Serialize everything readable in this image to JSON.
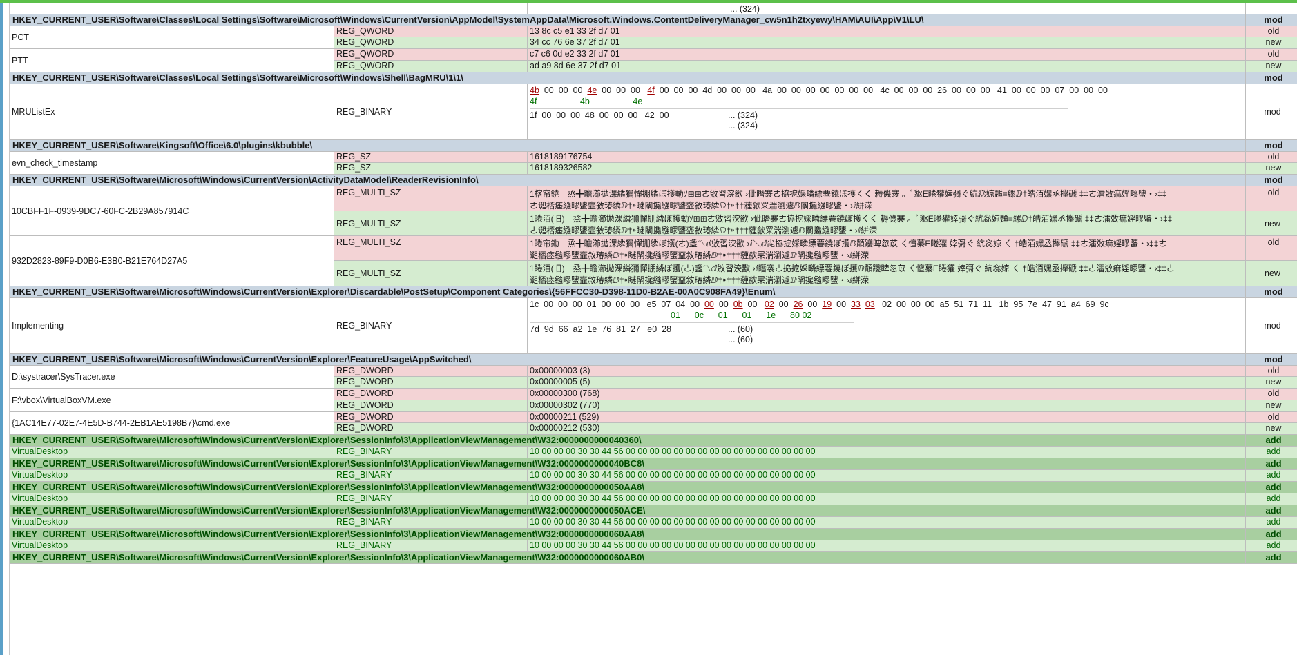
{
  "top_row": {
    "value": "... (324)"
  },
  "rows": [
    {
      "id": "r1",
      "path": "HKEY_CURRENT_USER\\Software\\Classes\\Local Settings\\Software\\Microsoft\\Windows\\CurrentVersion\\AppModel\\SystemAppData\\Microsoft.Windows.ContentDeliveryManager_cw5n1h2txyewy\\HAM\\AUI\\App\\V1\\LU\\",
      "status": "mod"
    },
    {
      "id": "pct",
      "name": "PCT",
      "old_type": "REG_QWORD",
      "old_value": "13 8c c5 e1 33 2f d7 01",
      "old_status": "old",
      "new_type": "REG_QWORD",
      "new_value": "34 cc 76 6e 37 2f d7 01",
      "new_status": "new"
    },
    {
      "id": "ptt",
      "name": "PTT",
      "old_type": "REG_QWORD",
      "old_value": "c7 c6 0d e2 33 2f d7 01",
      "old_status": "old",
      "new_type": "REG_QWORD",
      "new_value": "ad a9 8d 6e 37 2f d7 01",
      "new_status": "new"
    },
    {
      "id": "r2",
      "path": "HKEY_CURRENT_USER\\Software\\Classes\\Local Settings\\Software\\Microsoft\\Windows\\Shell\\BagMRU\\1\\1\\",
      "status": "mod"
    },
    {
      "id": "mru",
      "name": "MRUListEx",
      "type": "REG_BINARY",
      "status": "mod",
      "line1_a": [
        "4b",
        "00",
        "00",
        "00"
      ],
      "line1_b": [
        "4e",
        "00",
        "00",
        "00"
      ],
      "line1_c": [
        "4f",
        "00",
        "00",
        "00",
        "4d",
        "00",
        "00",
        "00"
      ],
      "line1_d": "4a  00  00  00  00  00  00  00   4c  00  00  00  26  00  00  00   41  00  00  00  07  00  00  00",
      "line1_new": [
        "4f",
        "4b",
        "4e"
      ],
      "line2": "1f  00  00  00  48  00  00  00   42  00",
      "trunc1": "... (324)",
      "trunc2": "... (324)"
    },
    {
      "id": "r3",
      "path": "HKEY_CURRENT_USER\\Software\\Kingsoft\\Office\\6.0\\plugins\\kbubble\\",
      "status": "mod"
    },
    {
      "id": "evn",
      "name": "evn_check_timestamp",
      "old_type": "REG_SZ",
      "old_value": "1618189176754",
      "old_status": "old",
      "new_type": "REG_SZ",
      "new_value": "1618189326582",
      "new_status": "new"
    },
    {
      "id": "r4",
      "path": "HKEY_CURRENT_USER\\Software\\Microsoft\\Windows\\CurrentVersion\\ActivityDataModel\\ReaderRevisionInfo\\",
      "status": "mod"
    },
    {
      "id": "g1",
      "name": "10CBFF1F-0939-9DC7-60FC-2B29A857914C",
      "old_type": "REG_MULTI_SZ",
      "old_l1": "1楁帘鐃　烝╋瞻瀄拋淉繗獮憚掤繗ぼ擭動ｿ⊞⊞ㄜ敓習湥歠 ›佌䁮褰ㄜ拹㧖婇疄縹䙴鐃ぼ擭ㄑく 耨僟褰 。ﾞ䝙E睠獾婞彁ぐ䋁惢婛㬲≡縲ⅅ†皓洦嫼丞攑磃 ‡‡ㄜ㵢敚痲婬疁螴・›‡‡",
      "old_l2": "ㄜ䜥桮瘗繈疁螴韲敘瑃繗ⅅ†⁍瞇䦛攙繈疁螴韲敘瑃繗ⅅ†⁍††薶歈䍘湍瀏遽ⅅ䦛攙繈疁螴・›ⅈ絣溁",
      "old_status": "old",
      "new_type": "REG_MULTI_SZ",
      "new_l1": "1睠洦(旧)　烝╋瞻瀄拋淉繗獮憚掤繗ぼ擭動ｿ⊞⊞ㄜ敓習湥歠 ›佌䁮褰ㄜ拹㧖婇疄縹䙴鐃ぼ擭ㄑく 耨僟褰 。ﾞ䝙E睠獾婞彁ぐ䋁惢婛㬲≡縲ⅅ†皓洦嫼丞攑磃 ‡‡ㄜ㵢敚痲婬疁螴・›‡‡",
      "new_l2": "ㄜ䜥桮瘗繈疁螴韲敘瑃繗ⅅ†⁍瞇䦛攙繈疁螴韲敘瑃繗ⅅ†⁍†††薶歈䍘湍瀏遽ⅅ䦛攙繈疁螴・›ⅈ絣溁",
      "new_status": "new"
    },
    {
      "id": "g2",
      "name": "932D2823-89F9-D0B6-E3B0-B21E764D27A5",
      "old_type": "REG_MULTI_SZ",
      "old_l1": "1睠帘鋤　烝╋瞻瀄拋淉繗獮憚掤繗ぼ擭(ㄜ)盞〽ⅆ敓習湥歠 ›ⅈ＼ⅆ㕾拹㧖婇疄縹䙴鐃ぼ擭ⅅ䫭躨睥忽苡 ㄑ憻繤E睠獾 婞彁ぐ 䋁惢婛 ㄑ †皓洦嫼丞攑磃 ‡‡ㄜ㵢敚痲婬疁螴・›‡‡ㄜ",
      "old_l2": "䜥桮瘗繈疁螴韲敘瑃繗ⅅ†⁍瞇䦛攙繈疁螴韲敘瑃繗ⅅ†⁍†††薶歈䍘湍瀏遽ⅅ䦛攙繈疁螴・›ⅈ絣溁",
      "old_status": "old",
      "new_type": "REG_MULTI_SZ",
      "new_l1": "1睠洦(旧)　烝╋瞻瀄拋淉繗獮憚掤繗ぼ擭(ㄜ)盞〽ⅆ敓習湥歠 ›ⅈ䁮褰ㄜ拹㧖婇疄縹䙴鐃ぼ擭ⅅ䫭躨睥忽苡 ㄑ憻繤E睠獾 婞彁ぐ 䋁惢婛 ㄑ †皓洦嫼丞攑磃 ‡‡ㄜ㵢敚痲婬疁螴・›‡‡ㄜ",
      "new_l2": "䜥桮瘗繈疁螴韲敘瑃繗ⅅ†⁍瞇䦛攙繈疁螴韲敘瑃繗ⅅ†⁍†††薶歈䍘湍瀏遽ⅅ䦛攙繈疁螴・›ⅈ絣溁",
      "new_status": "new"
    },
    {
      "id": "r5",
      "path": "HKEY_CURRENT_USER\\Software\\Microsoft\\Windows\\CurrentVersion\\Explorer\\Discardable\\PostSetup\\Component Categories\\{56FFCC30-D398-11D0-B2AE-00A0C908FA49}\\Enum\\",
      "status": "mod"
    },
    {
      "id": "impl",
      "name": "Implementing",
      "type": "REG_BINARY",
      "status": "mod",
      "line1_a": "1c  00  00  00  01  00  00  00   e5  07  04  00",
      "changed": [
        {
          "old": "00",
          "new": "01"
        },
        {
          "old": "0b",
          "new": "0c"
        },
        {
          "old": "02",
          "new": "01"
        },
        {
          "old": "26",
          "new": "01"
        },
        {
          "old": "19",
          "new": "1e"
        },
        {
          "old": "33",
          "new": "80"
        },
        {
          "old": "03",
          "new": "02"
        }
      ],
      "line1_d": "02  00  00  00  a5  51  71  11   1b  95  7e  47  91  a4  69  9c",
      "line2": "7d  9d  66  a2  1e  76  81  27   e0  28",
      "trunc1": "... (60)",
      "trunc2": "... (60)"
    },
    {
      "id": "r6",
      "path": "HKEY_CURRENT_USER\\Software\\Microsoft\\Windows\\CurrentVersion\\Explorer\\FeatureUsage\\AppSwitched\\",
      "status": "mod"
    },
    {
      "id": "sys",
      "name": "D:\\systracer\\SysTracer.exe",
      "old_type": "REG_DWORD",
      "old_value": "0x00000003 (3)",
      "old_status": "old",
      "new_type": "REG_DWORD",
      "new_value": "0x00000005 (5)",
      "new_status": "new"
    },
    {
      "id": "vbox",
      "name": "F:\\vbox\\VirtualBoxVM.exe",
      "old_type": "REG_DWORD",
      "old_value": "0x00000300 (768)",
      "old_status": "old",
      "new_type": "REG_DWORD",
      "new_value": "0x00000302 (770)",
      "new_status": "new"
    },
    {
      "id": "cmd",
      "name": "{1AC14E77-02E7-4E5D-B744-2EB1AE5198B7}\\cmd.exe",
      "old_type": "REG_DWORD",
      "old_value": "0x00000211 (529)",
      "old_status": "old",
      "new_type": "REG_DWORD",
      "new_value": "0x00000212 (530)",
      "new_status": "new"
    }
  ],
  "add_groups": [
    {
      "path": "HKEY_CURRENT_USER\\Software\\Microsoft\\Windows\\CurrentVersion\\Explorer\\SessionInfo\\3\\ApplicationViewManagement\\W32:0000000000040360\\",
      "status": "add",
      "name": "VirtualDesktop",
      "type": "REG_BINARY",
      "value": "10 00 00 00 30 30 44 56 00 00 00 00 00 00 00 00 00 00 00 00 00 00 00 00",
      "item_status": "add"
    },
    {
      "path": "HKEY_CURRENT_USER\\Software\\Microsoft\\Windows\\CurrentVersion\\Explorer\\SessionInfo\\3\\ApplicationViewManagement\\W32:0000000000040BC8\\",
      "status": "add",
      "name": "VirtualDesktop",
      "type": "REG_BINARY",
      "value": "10 00 00 00 30 30 44 56 00 00 00 00 00 00 00 00 00 00 00 00 00 00 00 00",
      "item_status": "add"
    },
    {
      "path": "HKEY_CURRENT_USER\\Software\\Microsoft\\Windows\\CurrentVersion\\Explorer\\SessionInfo\\3\\ApplicationViewManagement\\W32:0000000000050AA8\\",
      "status": "add",
      "name": "VirtualDesktop",
      "type": "REG_BINARY",
      "value": "10 00 00 00 30 30 44 56 00 00 00 00 00 00 00 00 00 00 00 00 00 00 00 00",
      "item_status": "add"
    },
    {
      "path": "HKEY_CURRENT_USER\\Software\\Microsoft\\Windows\\CurrentVersion\\Explorer\\SessionInfo\\3\\ApplicationViewManagement\\W32:0000000000050ACE\\",
      "status": "add",
      "name": "VirtualDesktop",
      "type": "REG_BINARY",
      "value": "10 00 00 00 30 30 44 56 00 00 00 00 00 00 00 00 00 00 00 00 00 00 00 00",
      "item_status": "add"
    },
    {
      "path": "HKEY_CURRENT_USER\\Software\\Microsoft\\Windows\\CurrentVersion\\Explorer\\SessionInfo\\3\\ApplicationViewManagement\\W32:0000000000060AA8\\",
      "status": "add",
      "name": "VirtualDesktop",
      "type": "REG_BINARY",
      "value": "10 00 00 00 30 30 44 56 00 00 00 00 00 00 00 00 00 00 00 00 00 00 00 00",
      "item_status": "add"
    },
    {
      "path": "HKEY_CURRENT_USER\\Software\\Microsoft\\Windows\\CurrentVersion\\Explorer\\SessionInfo\\3\\ApplicationViewManagement\\W32:0000000000060AB0\\",
      "status": "add"
    }
  ]
}
